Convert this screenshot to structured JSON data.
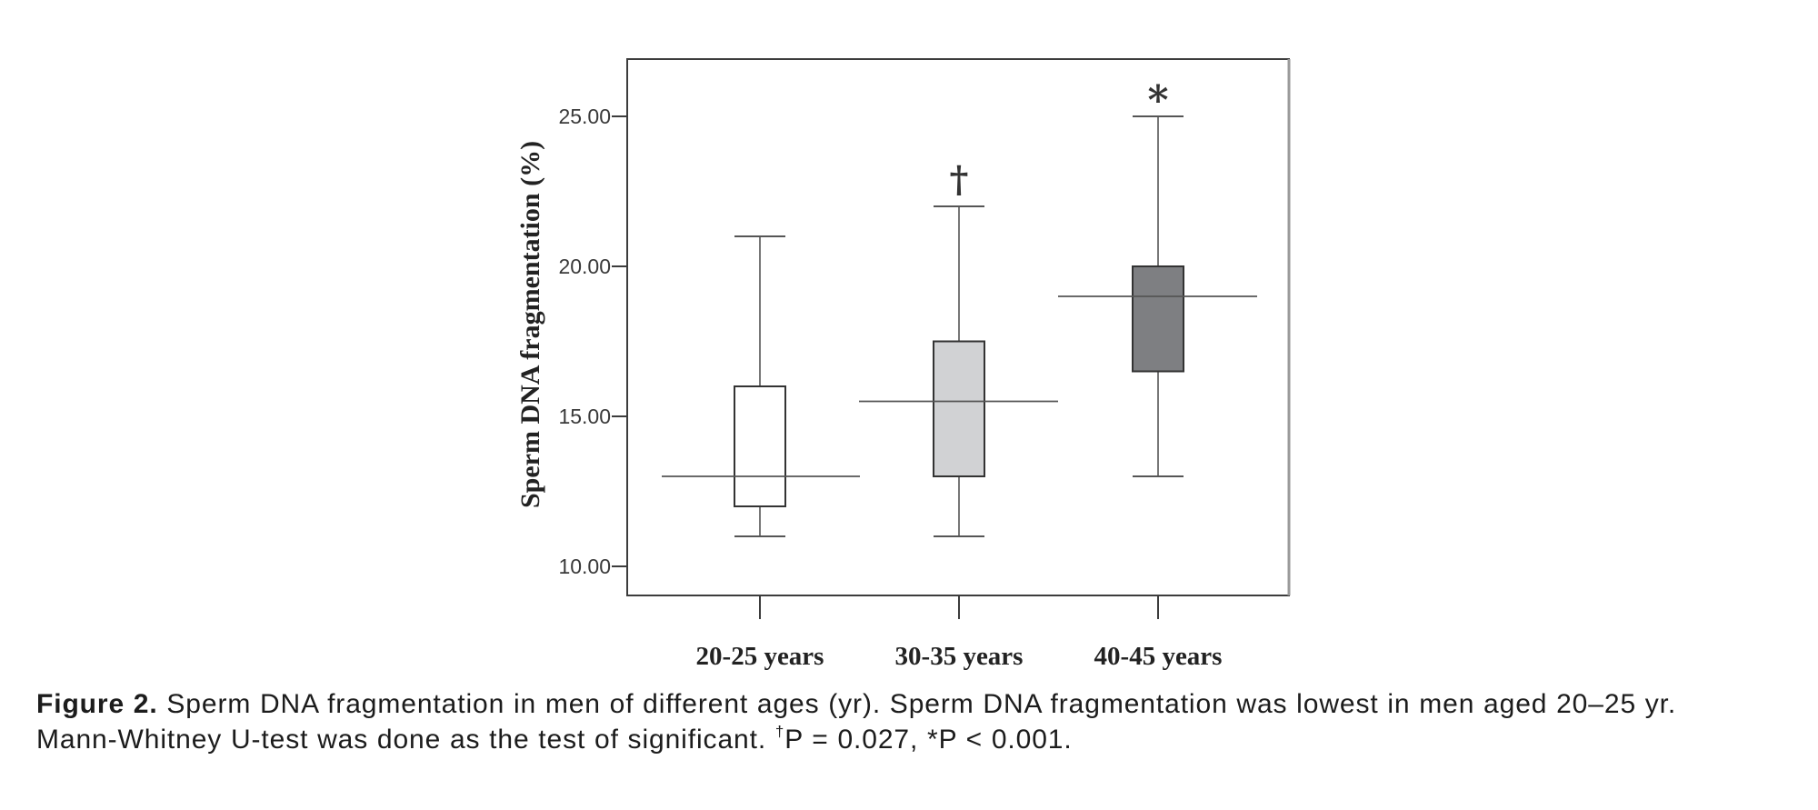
{
  "chart_data": {
    "type": "boxplot",
    "title": "",
    "xlabel": "",
    "ylabel": "Sperm DNA fragmentation (%)",
    "ylim": [
      9.0,
      27.0
    ],
    "yticks": [
      10,
      15,
      20,
      25
    ],
    "ytick_labels": [
      "10.00",
      "15.00",
      "20.00",
      "25.00"
    ],
    "categories": [
      "20-25 years",
      "30-35 years",
      "40-45 years"
    ],
    "grid": false,
    "series": [
      {
        "name": "20-25 years",
        "min": 11,
        "q1": 12,
        "median": 13,
        "q3": 16,
        "max": 21,
        "fill": "#ffffff",
        "annotation": ""
      },
      {
        "name": "30-35 years",
        "min": 11,
        "q1": 13,
        "median": 15.5,
        "q3": 17.5,
        "max": 22,
        "fill": "#d1d2d4",
        "annotation": "†"
      },
      {
        "name": "40-45 years",
        "min": 13,
        "q1": 16.5,
        "median": 19,
        "q3": 20,
        "max": 25,
        "fill": "#7e7f82",
        "annotation": "*"
      }
    ]
  },
  "caption": {
    "label": "Figure 2.",
    "line1_text": " Sperm DNA fragmentation in men of different ages (yr). Sperm DNA fragmentation was lowest in men aged 20–25 yr.",
    "line2_text": "Mann-Whitney U-test was done as the test of significant. ",
    "dagger": "†",
    "p_values": "P = 0.027, *P < 0.001."
  },
  "colors": {
    "frame": "#3c3c3c",
    "lines": "#555555",
    "box_border": "#333333"
  }
}
